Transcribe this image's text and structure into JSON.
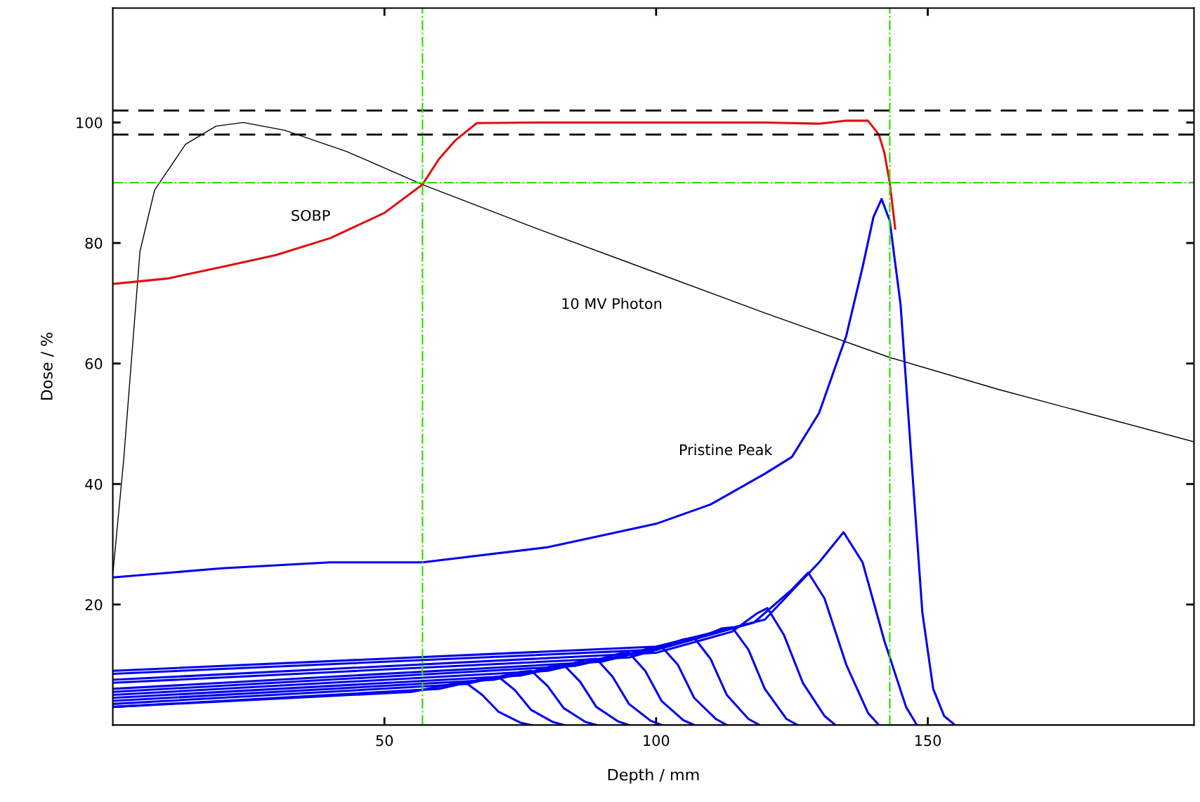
{
  "chart_data": {
    "type": "line",
    "xlabel": "Depth / mm",
    "ylabel": "Dose / %",
    "xlim": [
      0,
      199
    ],
    "ylim": [
      0,
      119
    ],
    "xticks": [
      50,
      100,
      150
    ],
    "yticks": [
      20,
      40,
      60,
      80,
      100
    ],
    "grid": false,
    "legend": false,
    "line_style": "solid",
    "marker": "none",
    "ref_lines": [
      {
        "axis": "y",
        "value": 102,
        "color": "#000000",
        "line_style": "dashed"
      },
      {
        "axis": "y",
        "value": 98,
        "color": "#000000",
        "line_style": "dashed"
      },
      {
        "axis": "y",
        "value": 90,
        "color": "#33dd00",
        "line_style": "dashdot"
      },
      {
        "axis": "x",
        "value": 57,
        "color": "#33dd00",
        "line_style": "dashdot"
      },
      {
        "axis": "x",
        "value": 143,
        "color": "#33dd00",
        "line_style": "dashdot"
      }
    ],
    "series": [
      {
        "name": "10 MV Photon",
        "color": "#000000",
        "x": [
          0,
          2,
          5,
          7.7,
          13.4,
          19,
          24,
          31.7,
          43,
          57,
          78,
          99,
          120,
          143,
          163,
          199
        ],
        "values": [
          25,
          44,
          78.6,
          88.8,
          96.4,
          99.4,
          100,
          98.7,
          95.2,
          89.7,
          82.4,
          75.4,
          68.4,
          61,
          55.7,
          47
        ]
      },
      {
        "name": "Pristine Peak",
        "color": "#0000ee",
        "x": [
          0,
          20,
          40,
          57,
          80,
          100,
          110,
          120,
          125,
          130,
          135,
          138,
          140,
          141.5,
          143,
          145,
          147,
          149,
          151,
          153,
          155
        ],
        "values": [
          24.5,
          26,
          27,
          27,
          29.5,
          33.4,
          36.6,
          41.7,
          44.5,
          51.8,
          64.6,
          76,
          84.3,
          87.3,
          83.7,
          69.7,
          44,
          18.7,
          6,
          1.5,
          0
        ]
      },
      {
        "color": "#0000ee",
        "x": [
          0,
          100,
          120,
          130,
          134.5,
          138,
          142,
          146,
          148
        ],
        "values": [
          9,
          13,
          17.5,
          27,
          32,
          27,
          14,
          3,
          0
        ]
      },
      {
        "color": "#0000ee",
        "x": [
          0,
          100,
          118,
          125,
          128,
          131,
          135,
          139,
          141
        ],
        "values": [
          8.5,
          12.5,
          17,
          22.5,
          25.3,
          21,
          10,
          2,
          0
        ]
      },
      {
        "color": "#0000ee",
        "x": [
          0,
          100,
          114,
          118.5,
          120.5,
          123.5,
          127,
          131,
          133
        ],
        "values": [
          7.5,
          12,
          15.5,
          18.5,
          19.4,
          15,
          7,
          1.5,
          0
        ]
      },
      {
        "color": "#0000ee",
        "x": [
          0,
          95,
          108,
          112,
          114,
          117,
          120,
          124,
          126
        ],
        "values": [
          7,
          11.2,
          14.5,
          16,
          16.2,
          12.5,
          6,
          1,
          0
        ]
      },
      {
        "color": "#0000ee",
        "x": [
          0,
          90,
          101,
          105,
          107,
          110,
          113,
          117,
          119
        ],
        "values": [
          6,
          10.5,
          13,
          14.2,
          14.5,
          11,
          5,
          1,
          0
        ]
      },
      {
        "color": "#0000ee",
        "x": [
          0,
          85,
          95,
          99,
          101,
          104,
          107,
          111,
          113
        ],
        "values": [
          5.5,
          9.8,
          11.8,
          12.8,
          13,
          10,
          4.5,
          1,
          0
        ]
      },
      {
        "color": "#0000ee",
        "x": [
          0,
          80,
          89,
          93,
          95,
          98,
          101,
          105,
          107
        ],
        "values": [
          5,
          9,
          10.8,
          11.8,
          12,
          9,
          4,
          0.8,
          0
        ]
      },
      {
        "color": "#0000ee",
        "x": [
          0,
          75,
          83,
          87,
          89,
          92,
          95,
          99,
          101
        ],
        "values": [
          4.5,
          8.2,
          9.8,
          10.8,
          11,
          8,
          3.5,
          0.7,
          0
        ]
      },
      {
        "color": "#0000ee",
        "x": [
          0,
          70,
          77,
          81,
          83,
          86,
          89,
          93,
          95
        ],
        "values": [
          4,
          7.5,
          8.8,
          9.8,
          10,
          7.2,
          3,
          0.6,
          0
        ]
      },
      {
        "color": "#0000ee",
        "x": [
          0,
          65,
          71,
          75,
          77,
          80,
          83,
          87,
          89
        ],
        "values": [
          3.5,
          6.8,
          8,
          8.8,
          9,
          6.5,
          2.8,
          0.5,
          0
        ]
      },
      {
        "color": "#0000ee",
        "x": [
          0,
          60,
          65,
          69,
          71,
          74,
          77,
          81,
          83
        ],
        "values": [
          3,
          6,
          7,
          7.8,
          8,
          5.8,
          2.5,
          0.5,
          0
        ]
      },
      {
        "color": "#0000ee",
        "x": [
          0,
          55,
          59,
          63,
          65,
          68,
          71,
          75,
          77
        ],
        "values": [
          3,
          5.5,
          6.2,
          6.9,
          7,
          5,
          2.2,
          0.4,
          0
        ]
      },
      {
        "name": "SOBP",
        "color": "#dd1111",
        "x": [
          0,
          10,
          20,
          30,
          40,
          50,
          57,
          60,
          63,
          67,
          80,
          100,
          120,
          130,
          135,
          139,
          141,
          142,
          143,
          144
        ],
        "values": [
          73.2,
          74.1,
          76,
          78,
          80.8,
          85,
          89.7,
          93.9,
          97,
          99.9,
          100,
          100,
          100,
          99.8,
          100.3,
          100.3,
          98,
          95,
          90,
          82.4
        ]
      }
    ]
  }
}
